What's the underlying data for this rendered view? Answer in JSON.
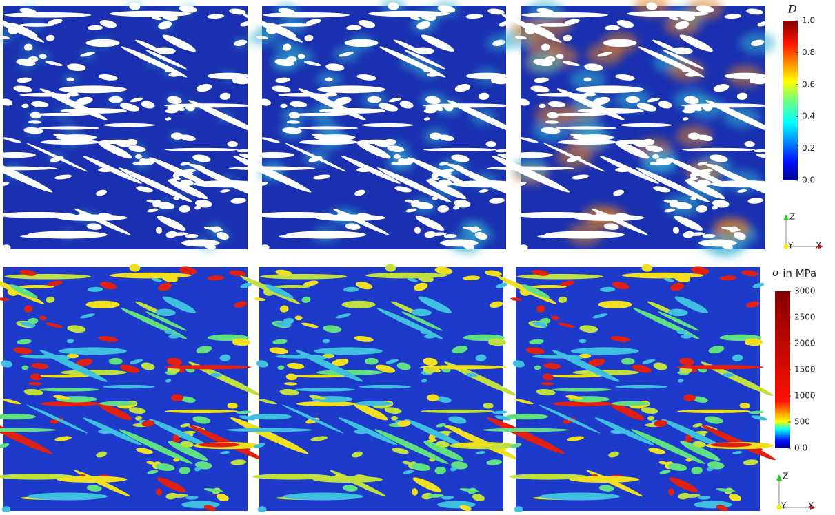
{
  "colorbar_damage": {
    "title": "D",
    "tick_labels": [
      "1.0",
      "0.8",
      "0.6",
      "0.4",
      "0.2",
      "0.0"
    ]
  },
  "colorbar_stress": {
    "symbol": "σ",
    "title": "in MPa",
    "tick_labels": [
      "3000",
      "2500",
      "2000",
      "1500",
      "1000",
      "500",
      "0.0"
    ]
  },
  "axes_top": {
    "z": "Z",
    "y": "Y",
    "x": "X"
  },
  "axes_bottom": {
    "z": "Z",
    "y": "Y",
    "x": "X"
  }
}
